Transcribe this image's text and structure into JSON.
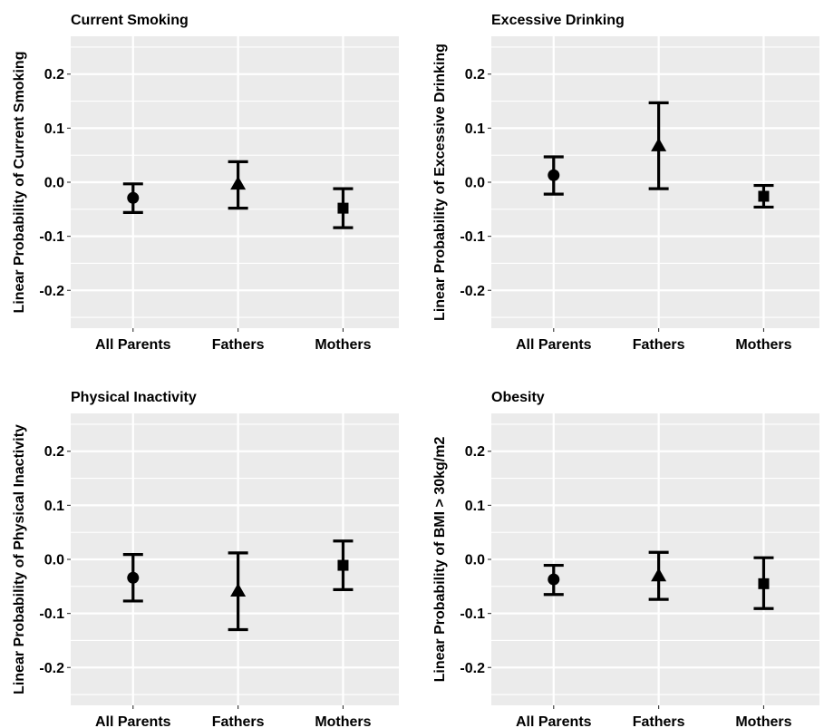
{
  "chart_data": [
    {
      "type": "scatter",
      "title": "Current Smoking",
      "xlabel": "",
      "ylabel": "Linear Probability of Current Smoking",
      "categories": [
        "All Parents",
        "Fathers",
        "Mothers"
      ],
      "ylim": [
        -0.27,
        0.27
      ],
      "yticks": [
        -0.2,
        -0.1,
        0.0,
        0.1,
        0.2
      ],
      "ytick_labels": [
        "-0.2",
        "-0.1",
        "0.0",
        "0.1",
        "0.2"
      ],
      "grid": true,
      "points": [
        {
          "category": "All Parents",
          "estimate": -0.029,
          "lower": -0.056,
          "upper": -0.003,
          "shape": "circle"
        },
        {
          "category": "Fathers",
          "estimate": -0.003,
          "lower": -0.048,
          "upper": 0.038,
          "shape": "triangle"
        },
        {
          "category": "Mothers",
          "estimate": -0.048,
          "lower": -0.084,
          "upper": -0.012,
          "shape": "square"
        }
      ]
    },
    {
      "type": "scatter",
      "title": "Excessive Drinking",
      "xlabel": "",
      "ylabel": "Linear Probability of Excessive Drinking",
      "categories": [
        "All Parents",
        "Fathers",
        "Mothers"
      ],
      "ylim": [
        -0.27,
        0.27
      ],
      "yticks": [
        -0.2,
        -0.1,
        0.0,
        0.1,
        0.2
      ],
      "ytick_labels": [
        "-0.2",
        "-0.1",
        "0.0",
        "0.1",
        "0.2"
      ],
      "grid": true,
      "points": [
        {
          "category": "All Parents",
          "estimate": 0.013,
          "lower": -0.022,
          "upper": 0.047,
          "shape": "circle"
        },
        {
          "category": "Fathers",
          "estimate": 0.068,
          "lower": -0.012,
          "upper": 0.147,
          "shape": "triangle"
        },
        {
          "category": "Mothers",
          "estimate": -0.026,
          "lower": -0.046,
          "upper": -0.006,
          "shape": "square"
        }
      ]
    },
    {
      "type": "scatter",
      "title": "Physical Inactivity",
      "xlabel": "",
      "ylabel": "Linear Probability of Physical Inactivity",
      "categories": [
        "All Parents",
        "Fathers",
        "Mothers"
      ],
      "ylim": [
        -0.27,
        0.27
      ],
      "yticks": [
        -0.2,
        -0.1,
        0.0,
        0.1,
        0.2
      ],
      "ytick_labels": [
        "-0.2",
        "-0.1",
        "0.0",
        "0.1",
        "0.2"
      ],
      "grid": true,
      "points": [
        {
          "category": "All Parents",
          "estimate": -0.034,
          "lower": -0.077,
          "upper": 0.009,
          "shape": "circle"
        },
        {
          "category": "Fathers",
          "estimate": -0.058,
          "lower": -0.13,
          "upper": 0.012,
          "shape": "triangle"
        },
        {
          "category": "Mothers",
          "estimate": -0.011,
          "lower": -0.056,
          "upper": 0.034,
          "shape": "square"
        }
      ]
    },
    {
      "type": "scatter",
      "title": "Obesity",
      "xlabel": "",
      "ylabel": "Linear Probability of BMI > 30kg/m2",
      "categories": [
        "All Parents",
        "Fathers",
        "Mothers"
      ],
      "ylim": [
        -0.27,
        0.27
      ],
      "yticks": [
        -0.2,
        -0.1,
        0.0,
        0.1,
        0.2
      ],
      "ytick_labels": [
        "-0.2",
        "-0.1",
        "0.0",
        "0.1",
        "0.2"
      ],
      "grid": true,
      "points": [
        {
          "category": "All Parents",
          "estimate": -0.037,
          "lower": -0.065,
          "upper": -0.011,
          "shape": "circle"
        },
        {
          "category": "Fathers",
          "estimate": -0.03,
          "lower": -0.074,
          "upper": 0.013,
          "shape": "triangle"
        },
        {
          "category": "Mothers",
          "estimate": -0.045,
          "lower": -0.091,
          "upper": 0.003,
          "shape": "square"
        }
      ]
    }
  ]
}
